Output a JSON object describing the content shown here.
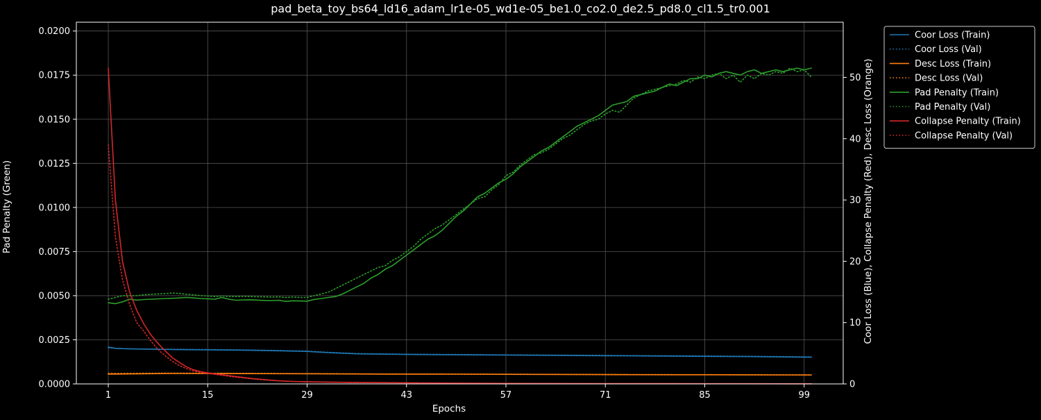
{
  "chart_data": {
    "type": "line",
    "title": "pad_beta_toy_bs64_ld16_adam_lr1e-05_wd1e-05_be1.0_co2.0_de2.5_pd8.0_cl1.5_tr0.001",
    "xlabel": "Epochs",
    "ylabel_left": "Pad Penalty (Green)",
    "ylabel_right": "Coor Loss (Blue), Collapse Penalty (Red), Desc Loss (Orange)",
    "x_ticks": [
      1,
      15,
      29,
      43,
      57,
      71,
      85,
      99
    ],
    "xlim": [
      -3.5,
      104.5
    ],
    "ylim_left": [
      0,
      0.0205
    ],
    "ylim_right": [
      0,
      59
    ],
    "y_ticks_left": [
      "0.0000",
      "0.0025",
      "0.0050",
      "0.0075",
      "0.0100",
      "0.0125",
      "0.0150",
      "0.0175",
      "0.0200"
    ],
    "y_ticks_right": [
      0,
      10,
      20,
      30,
      40,
      50
    ],
    "grid": true,
    "legend_position": "outside-top-right",
    "colors": {
      "background": "#000000",
      "foreground": "#ffffff",
      "grid": "#555555",
      "coor": "#1f77b4",
      "desc": "#ff7f0e",
      "pad": "#2ca02c",
      "collapse": "#d62728"
    },
    "series": [
      {
        "name": "Coor Loss (Train)",
        "axis": "right",
        "color": "#1f77b4",
        "style": "solid",
        "x": [
          1,
          2,
          3,
          5,
          10,
          15,
          20,
          25,
          29,
          32,
          36,
          43,
          50,
          57,
          64,
          71,
          78,
          85,
          92,
          100
        ],
        "y": [
          6.0,
          5.8,
          5.75,
          5.7,
          5.6,
          5.55,
          5.5,
          5.4,
          5.3,
          5.1,
          4.9,
          4.8,
          4.75,
          4.7,
          4.65,
          4.6,
          4.55,
          4.5,
          4.45,
          4.35
        ]
      },
      {
        "name": "Coor Loss (Val)",
        "axis": "right",
        "color": "#1f77b4",
        "style": "dotted",
        "x": [
          1,
          2,
          3,
          5,
          10,
          15,
          20,
          25,
          29,
          32,
          36,
          43,
          50,
          57,
          64,
          71,
          78,
          85,
          92,
          100
        ],
        "y": [
          5.9,
          5.8,
          5.75,
          5.7,
          5.65,
          5.6,
          5.55,
          5.45,
          5.35,
          5.15,
          4.95,
          4.85,
          4.8,
          4.75,
          4.7,
          4.65,
          4.6,
          4.55,
          4.5,
          4.4
        ]
      },
      {
        "name": "Desc Loss (Train)",
        "axis": "right",
        "color": "#ff7f0e",
        "style": "solid",
        "x": [
          1,
          10,
          20,
          30,
          40,
          50,
          60,
          70,
          80,
          90,
          100
        ],
        "y": [
          1.6,
          1.7,
          1.68,
          1.65,
          1.6,
          1.58,
          1.55,
          1.52,
          1.5,
          1.48,
          1.45
        ]
      },
      {
        "name": "Desc Loss (Val)",
        "axis": "right",
        "color": "#ff7f0e",
        "style": "dotted",
        "x": [
          1,
          10,
          20,
          30,
          40,
          50,
          60,
          70,
          80,
          90,
          100
        ],
        "y": [
          1.7,
          1.75,
          1.72,
          1.68,
          1.62,
          1.6,
          1.57,
          1.54,
          1.52,
          1.5,
          1.47
        ]
      },
      {
        "name": "Pad Penalty (Train)",
        "axis": "left",
        "color": "#2ca02c",
        "style": "solid",
        "x": [
          1,
          2,
          3,
          4,
          5,
          6,
          7,
          8,
          9,
          10,
          11,
          12,
          13,
          14,
          15,
          16,
          17,
          18,
          19,
          20,
          21,
          22,
          23,
          24,
          25,
          26,
          27,
          28,
          29,
          30,
          31,
          32,
          33,
          34,
          35,
          36,
          37,
          38,
          39,
          40,
          41,
          42,
          43,
          44,
          45,
          46,
          47,
          48,
          49,
          50,
          51,
          52,
          53,
          54,
          55,
          56,
          57,
          58,
          59,
          60,
          61,
          62,
          63,
          64,
          65,
          66,
          67,
          68,
          69,
          70,
          71,
          72,
          73,
          74,
          75,
          76,
          77,
          78,
          79,
          80,
          81,
          82,
          83,
          84,
          85,
          86,
          87,
          88,
          89,
          90,
          91,
          92,
          93,
          94,
          95,
          96,
          97,
          98,
          99,
          100
        ],
        "y": [
          0.0046,
          0.00455,
          0.00465,
          0.0048,
          0.00475,
          0.00478,
          0.0048,
          0.00482,
          0.00484,
          0.00485,
          0.00487,
          0.0049,
          0.00487,
          0.00484,
          0.00482,
          0.0048,
          0.0049,
          0.0048,
          0.00474,
          0.00476,
          0.00477,
          0.00475,
          0.00473,
          0.00472,
          0.00474,
          0.00468,
          0.00471,
          0.0047,
          0.00469,
          0.00479,
          0.00484,
          0.0049,
          0.00495,
          0.0051,
          0.0053,
          0.0055,
          0.0057,
          0.006,
          0.0062,
          0.0065,
          0.0067,
          0.007,
          0.0073,
          0.0076,
          0.0079,
          0.0082,
          0.0084,
          0.0087,
          0.0091,
          0.0095,
          0.0098,
          0.0102,
          0.0106,
          0.0108,
          0.0111,
          0.0114,
          0.0116,
          0.0119,
          0.0123,
          0.0126,
          0.0129,
          0.0132,
          0.0134,
          0.0137,
          0.014,
          0.0143,
          0.0146,
          0.0148,
          0.015,
          0.0152,
          0.0155,
          0.0158,
          0.0159,
          0.016,
          0.0163,
          0.0164,
          0.0165,
          0.0166,
          0.0168,
          0.017,
          0.0169,
          0.0171,
          0.0173,
          0.0173,
          0.0175,
          0.0174,
          0.0176,
          0.0177,
          0.0176,
          0.0175,
          0.0177,
          0.0178,
          0.0176,
          0.0177,
          0.0178,
          0.0177,
          0.0178,
          0.0179,
          0.0178,
          0.0179
        ]
      },
      {
        "name": "Pad Penalty (Val)",
        "axis": "left",
        "color": "#2ca02c",
        "style": "dotted",
        "x": [
          1,
          2,
          3,
          4,
          5,
          6,
          7,
          8,
          9,
          10,
          11,
          12,
          13,
          14,
          15,
          16,
          17,
          18,
          19,
          20,
          21,
          22,
          23,
          24,
          25,
          26,
          27,
          28,
          29,
          30,
          31,
          32,
          33,
          34,
          35,
          36,
          37,
          38,
          39,
          40,
          41,
          42,
          43,
          44,
          45,
          46,
          47,
          48,
          49,
          50,
          51,
          52,
          53,
          54,
          55,
          56,
          57,
          58,
          59,
          60,
          61,
          62,
          63,
          64,
          65,
          66,
          67,
          68,
          69,
          70,
          71,
          72,
          73,
          74,
          75,
          76,
          77,
          78,
          79,
          80,
          81,
          82,
          83,
          84,
          85,
          86,
          87,
          88,
          89,
          90,
          91,
          92,
          93,
          94,
          95,
          96,
          97,
          98,
          99,
          100
        ],
        "y": [
          0.0048,
          0.0049,
          0.005,
          0.005,
          0.005,
          0.00505,
          0.00508,
          0.0051,
          0.00512,
          0.00515,
          0.00513,
          0.00508,
          0.00505,
          0.005,
          0.00498,
          0.00495,
          0.00498,
          0.00496,
          0.00495,
          0.00496,
          0.00495,
          0.00494,
          0.00493,
          0.00492,
          0.00493,
          0.0049,
          0.00492,
          0.0049,
          0.0049,
          0.005,
          0.0051,
          0.0052,
          0.0054,
          0.0056,
          0.0058,
          0.006,
          0.0062,
          0.0064,
          0.0066,
          0.0067,
          0.007,
          0.0072,
          0.0075,
          0.0078,
          0.0082,
          0.0085,
          0.0088,
          0.009,
          0.0093,
          0.0096,
          0.0099,
          0.0102,
          0.0105,
          0.0106,
          0.011,
          0.0113,
          0.0118,
          0.012,
          0.0124,
          0.0127,
          0.013,
          0.0131,
          0.0133,
          0.0136,
          0.0139,
          0.0141,
          0.0144,
          0.0147,
          0.0149,
          0.015,
          0.0153,
          0.0155,
          0.0154,
          0.0158,
          0.0162,
          0.0164,
          0.0166,
          0.0167,
          0.0168,
          0.0169,
          0.017,
          0.0172,
          0.0171,
          0.0174,
          0.0173,
          0.0175,
          0.0176,
          0.0173,
          0.0175,
          0.0171,
          0.0175,
          0.0173,
          0.0176,
          0.0175,
          0.0177,
          0.0176,
          0.0179,
          0.0177,
          0.0178,
          0.0174
        ]
      },
      {
        "name": "Collapse Penalty (Train)",
        "axis": "right",
        "color": "#d62728",
        "style": "solid",
        "x": [
          1,
          2,
          3,
          4,
          5,
          6,
          7,
          8,
          9,
          10,
          11,
          12,
          13,
          14,
          15,
          17,
          19,
          21,
          23,
          25,
          27,
          29,
          32,
          35,
          40,
          50,
          60,
          70,
          80,
          90,
          100
        ],
        "y": [
          51.5,
          30.0,
          20.0,
          15.0,
          12.0,
          9.8,
          8.0,
          6.6,
          5.4,
          4.3,
          3.5,
          2.8,
          2.3,
          2.0,
          1.8,
          1.5,
          1.2,
          0.9,
          0.7,
          0.5,
          0.4,
          0.35,
          0.3,
          0.25,
          0.2,
          0.12,
          0.08,
          0.05,
          0.04,
          0.03,
          0.02
        ]
      },
      {
        "name": "Collapse Penalty (Val)",
        "axis": "right",
        "color": "#d62728",
        "style": "dotted",
        "x": [
          1,
          2,
          3,
          4,
          5,
          6,
          7,
          8,
          9,
          10,
          11,
          12,
          13,
          14,
          15,
          17,
          19,
          21,
          23,
          25,
          27,
          29,
          32,
          35,
          40,
          50,
          60,
          70,
          80,
          90,
          100
        ],
        "y": [
          39.0,
          24.0,
          17.0,
          13.0,
          10.0,
          8.6,
          7.0,
          5.6,
          4.6,
          3.7,
          3.0,
          2.5,
          2.1,
          1.9,
          1.7,
          1.4,
          1.1,
          0.85,
          0.65,
          0.5,
          0.4,
          0.33,
          0.28,
          0.23,
          0.18,
          0.1,
          0.07,
          0.05,
          0.04,
          0.03,
          0.02
        ]
      }
    ]
  }
}
